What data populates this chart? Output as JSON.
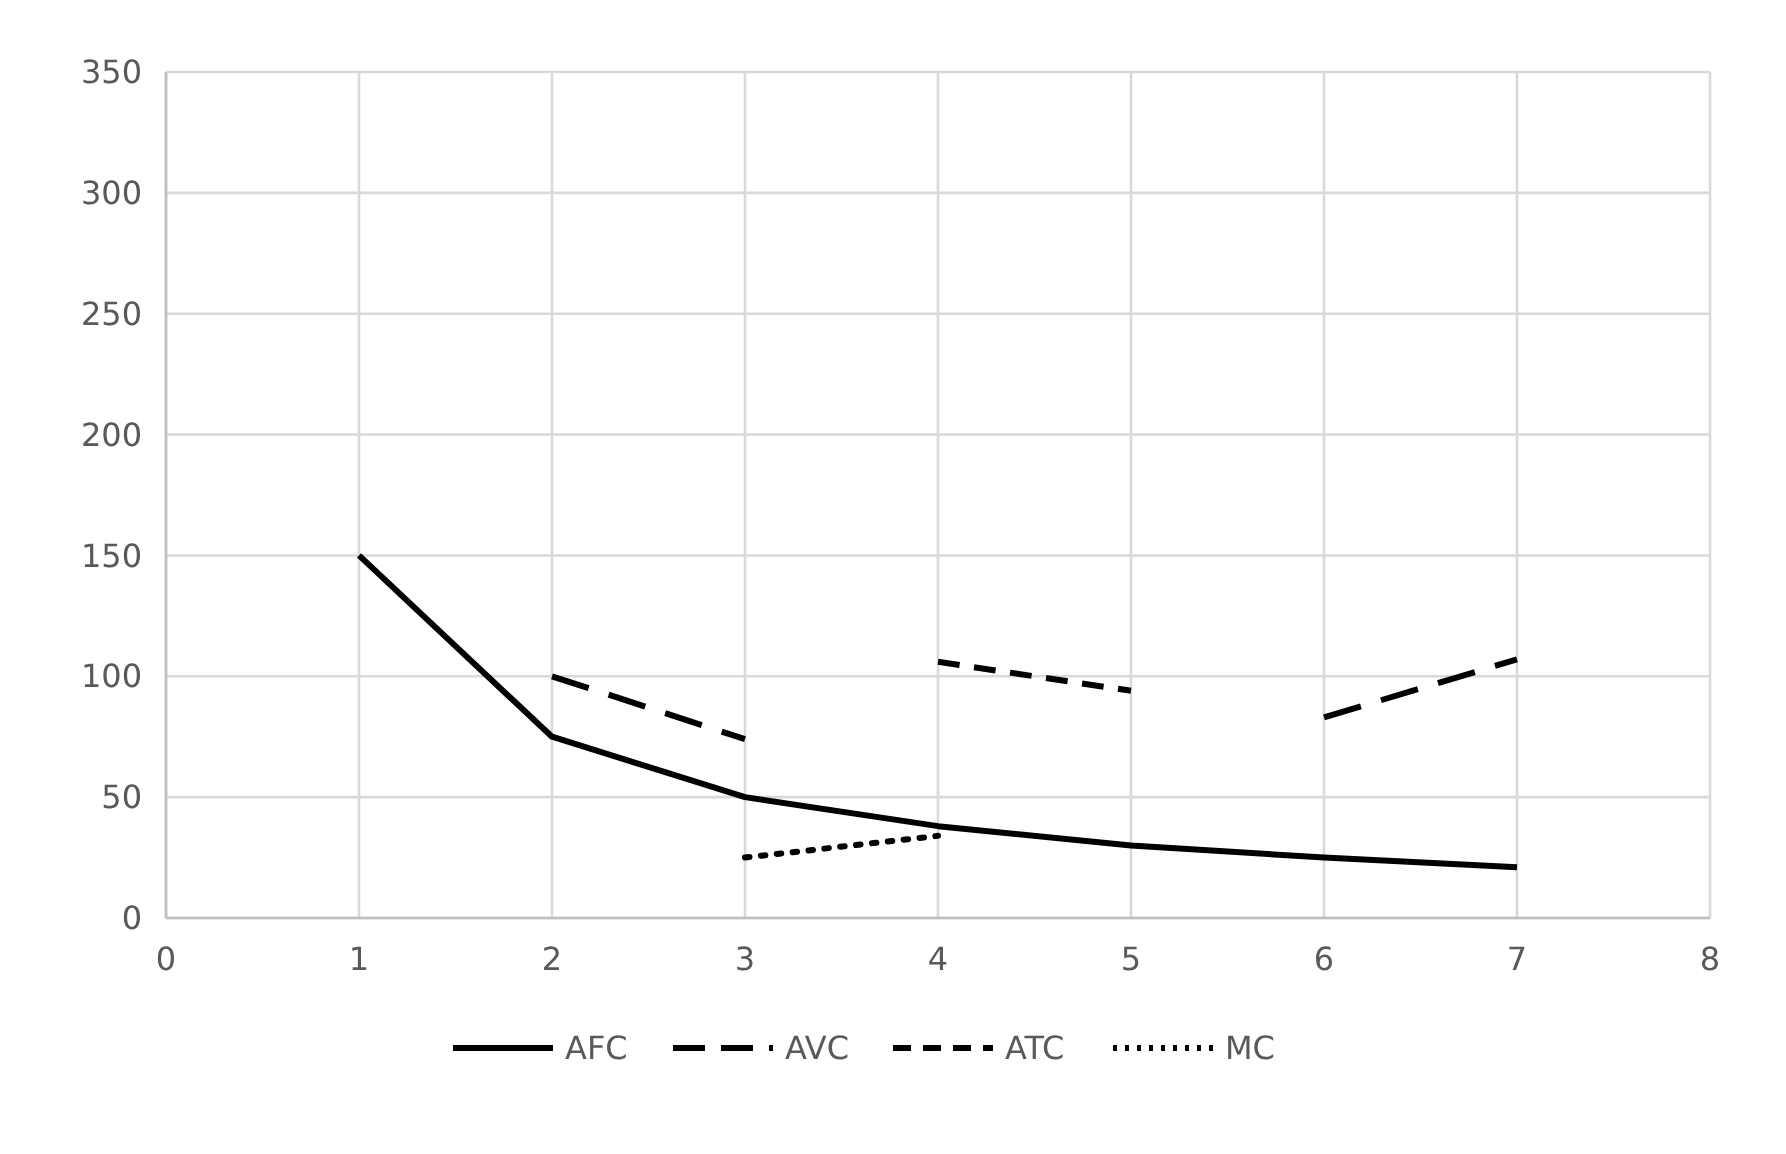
{
  "chart_data": {
    "type": "line",
    "x": [
      1,
      2,
      3,
      4,
      5,
      6,
      7
    ],
    "series": [
      {
        "name": "AFC",
        "color": "#000000",
        "line_style": "solid",
        "values": [
          150,
          75,
          50,
          38,
          30,
          25,
          21
        ]
      },
      {
        "name": "AVC",
        "color": "#000000",
        "line_style": "dashed",
        "values": [
          null,
          100,
          74,
          null,
          null,
          83,
          107
        ]
      },
      {
        "name": "ATC",
        "color": "#000000",
        "line_style": "dashed",
        "values": [
          null,
          null,
          null,
          106,
          94,
          null,
          null
        ]
      },
      {
        "name": "MC",
        "color": "#000000",
        "line_style": "dotted",
        "values": [
          null,
          null,
          25,
          34,
          null,
          null,
          null
        ]
      }
    ],
    "xlim": [
      0,
      8
    ],
    "xticks": [
      0,
      1,
      2,
      3,
      4,
      5,
      6,
      7,
      8
    ],
    "ylim": [
      0,
      350
    ],
    "yticks": [
      0,
      50,
      100,
      150,
      200,
      250,
      300,
      350
    ],
    "grid": true,
    "legend": "bottom",
    "marker": "none"
  }
}
